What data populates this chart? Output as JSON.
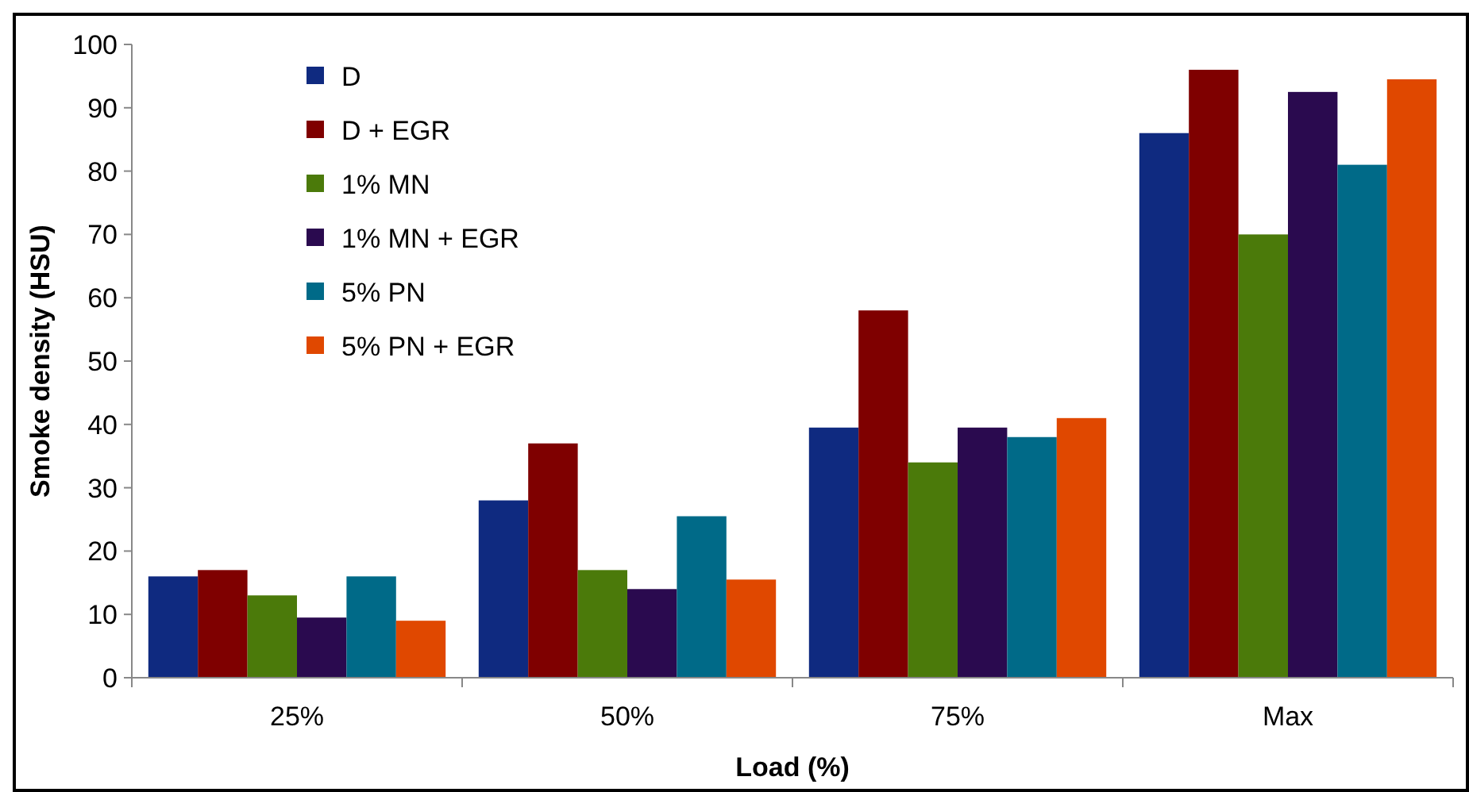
{
  "chart_data": {
    "type": "bar",
    "xlabel": "Load (%)",
    "ylabel": "Smoke density (HSU)",
    "categories": [
      "25%",
      "50%",
      "75%",
      "Max"
    ],
    "series": [
      {
        "name": "D",
        "color": "#0f2a80",
        "values": [
          16,
          28,
          39.5,
          86
        ]
      },
      {
        "name": "D + EGR",
        "color": "#7f0000",
        "values": [
          17,
          37,
          58,
          96
        ]
      },
      {
        "name": "1% MN",
        "color": "#4b7a0a",
        "values": [
          13,
          17,
          34,
          70
        ]
      },
      {
        "name": "1% MN + EGR",
        "color": "#2a0a4f",
        "values": [
          9.5,
          14,
          39.5,
          92.5
        ]
      },
      {
        "name": "5% PN",
        "color": "#006a88",
        "values": [
          16,
          25.5,
          38,
          81
        ]
      },
      {
        "name": "5% PN + EGR",
        "color": "#e04800",
        "values": [
          9,
          15.5,
          41,
          94.5
        ]
      }
    ],
    "ylim": [
      0,
      100
    ],
    "yticks": [
      0,
      10,
      20,
      30,
      40,
      50,
      60,
      70,
      80,
      90,
      100
    ],
    "grid": false,
    "legend": "top left"
  }
}
